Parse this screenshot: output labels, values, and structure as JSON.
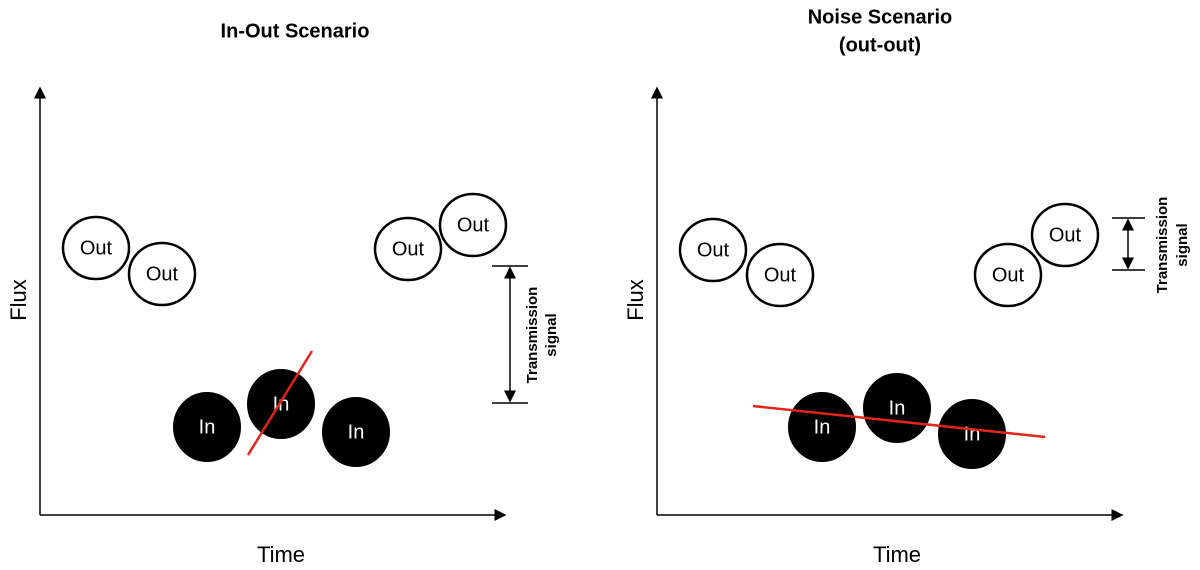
{
  "panels": [
    {
      "title_lines": [
        "In-Out Scenario"
      ],
      "x_label": "Time",
      "y_label": "Flux",
      "nodes": [
        {
          "label": "Out"
        },
        {
          "label": "Out"
        },
        {
          "label": "Out"
        },
        {
          "label": "Out"
        },
        {
          "label": "In"
        },
        {
          "label": "In"
        },
        {
          "label": "In"
        }
      ],
      "annotation_lines": [
        "Transmission",
        "signal"
      ]
    },
    {
      "title_lines": [
        "Noise Scenario",
        "(out-out)"
      ],
      "x_label": "Time",
      "y_label": "Flux",
      "nodes": [
        {
          "label": "Out"
        },
        {
          "label": "Out"
        },
        {
          "label": "Out"
        },
        {
          "label": "Out"
        },
        {
          "label": "In"
        },
        {
          "label": "In"
        },
        {
          "label": "In"
        }
      ],
      "annotation_lines": [
        "Transmission",
        "signal"
      ]
    }
  ]
}
